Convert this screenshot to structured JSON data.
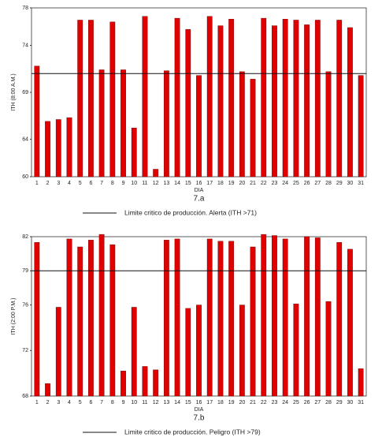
{
  "chart_data": [
    {
      "type": "bar",
      "y_label": "ITH (8:00 A.M.)",
      "x_label": "DIA",
      "caption": "7.a",
      "categories": [
        "1",
        "2",
        "3",
        "4",
        "5",
        "6",
        "7",
        "8",
        "9",
        "10",
        "11",
        "12",
        "13",
        "14",
        "15",
        "16",
        "17",
        "18",
        "19",
        "20",
        "21",
        "22",
        "23",
        "24",
        "25",
        "26",
        "27",
        "28",
        "29",
        "30",
        "31"
      ],
      "values": [
        71.8,
        65.9,
        66.1,
        66.3,
        76.7,
        76.7,
        71.4,
        76.5,
        71.4,
        65.2,
        77.1,
        60.8,
        71.3,
        76.9,
        75.7,
        70.8,
        77.1,
        76.1,
        76.8,
        71.2,
        70.4,
        76.9,
        76.1,
        76.8,
        76.7,
        76.2,
        76.7,
        71.2,
        76.7,
        75.9,
        70.8
      ],
      "color": "#e00000",
      "ylim": [
        60,
        78
      ],
      "yticks": [
        60,
        64,
        69,
        74,
        78
      ],
      "threshold": 71,
      "threshold_label": "Limite critico de producción. Alerta (ITH >71)"
    },
    {
      "type": "bar",
      "y_label": "ITH (2:00 P.M.)",
      "x_label": "DIA",
      "caption": "7.b",
      "categories": [
        "1",
        "2",
        "3",
        "4",
        "5",
        "6",
        "7",
        "8",
        "9",
        "10",
        "11",
        "12",
        "13",
        "14",
        "15",
        "16",
        "17",
        "18",
        "19",
        "20",
        "21",
        "22",
        "23",
        "24",
        "25",
        "26",
        "27",
        "28",
        "29",
        "30",
        "31"
      ],
      "values": [
        81.5,
        69.1,
        75.8,
        81.8,
        81.1,
        81.7,
        82.2,
        81.3,
        70.2,
        75.8,
        70.6,
        70.3,
        81.7,
        81.8,
        75.7,
        76.0,
        81.8,
        81.6,
        81.6,
        76.0,
        81.1,
        82.2,
        82.1,
        81.8,
        76.1,
        82.0,
        81.9,
        76.3,
        81.5,
        80.9,
        70.4
      ],
      "color": "#e00000",
      "ylim": [
        68,
        82
      ],
      "yticks": [
        68,
        72,
        76,
        79,
        82
      ],
      "threshold": 79,
      "threshold_label": "Limite critico de producción. Peligro (ITH >79)"
    }
  ]
}
